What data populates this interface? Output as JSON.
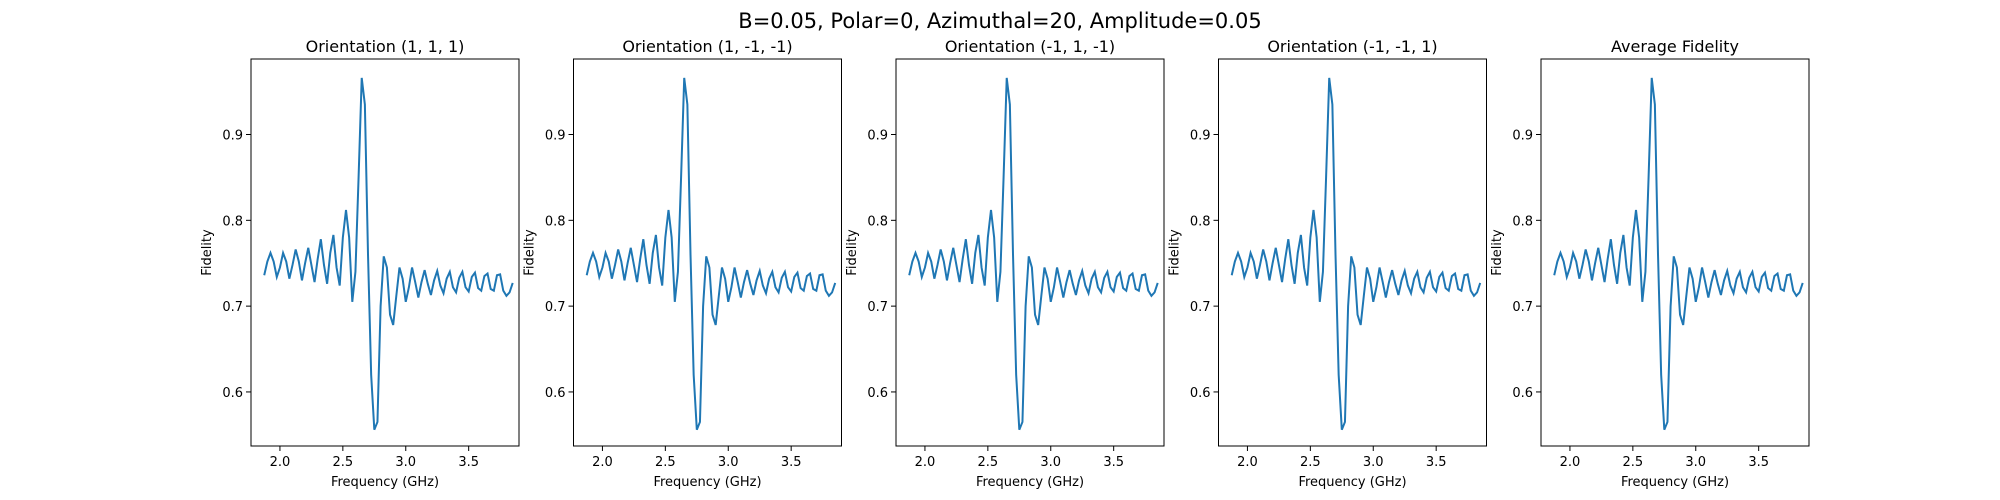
{
  "suptitle": "B=0.05, Polar=0, Azimuthal=20, Amplitude=0.05",
  "chart_data": [
    {
      "type": "line",
      "title": "Orientation (1, 1, 1)",
      "xlabel": "Frequency (GHz)",
      "ylabel": "Fidelity",
      "color": "#1f77b4",
      "x": [
        1.875,
        1.9,
        1.925,
        1.95,
        1.975,
        2.0,
        2.025,
        2.05,
        2.075,
        2.1,
        2.125,
        2.15,
        2.175,
        2.2,
        2.225,
        2.25,
        2.275,
        2.3,
        2.325,
        2.35,
        2.375,
        2.4,
        2.425,
        2.45,
        2.475,
        2.5,
        2.525,
        2.55,
        2.575,
        2.6,
        2.625,
        2.65,
        2.675,
        2.7,
        2.725,
        2.75,
        2.775,
        2.8,
        2.825,
        2.85,
        2.875,
        2.9,
        2.925,
        2.95,
        2.975,
        3.0,
        3.025,
        3.05,
        3.075,
        3.1,
        3.125,
        3.15,
        3.175,
        3.2,
        3.225,
        3.25,
        3.275,
        3.3,
        3.325,
        3.35,
        3.375,
        3.4,
        3.425,
        3.45,
        3.475,
        3.5,
        3.525,
        3.55,
        3.575,
        3.6,
        3.625,
        3.65,
        3.675,
        3.7,
        3.725,
        3.75,
        3.775,
        3.8,
        3.825,
        3.85
      ],
      "values": [
        0.736,
        0.752,
        0.762,
        0.752,
        0.734,
        0.745,
        0.762,
        0.752,
        0.732,
        0.748,
        0.766,
        0.752,
        0.73,
        0.75,
        0.768,
        0.748,
        0.728,
        0.755,
        0.778,
        0.748,
        0.726,
        0.762,
        0.783,
        0.745,
        0.724,
        0.78,
        0.812,
        0.78,
        0.705,
        0.74,
        0.85,
        0.966,
        0.935,
        0.76,
        0.62,
        0.556,
        0.565,
        0.7,
        0.758,
        0.745,
        0.69,
        0.678,
        0.712,
        0.745,
        0.732,
        0.705,
        0.722,
        0.745,
        0.728,
        0.71,
        0.728,
        0.742,
        0.726,
        0.713,
        0.73,
        0.741,
        0.724,
        0.715,
        0.732,
        0.74,
        0.722,
        0.716,
        0.733,
        0.74,
        0.722,
        0.717,
        0.734,
        0.739,
        0.721,
        0.718,
        0.735,
        0.738,
        0.72,
        0.718,
        0.736,
        0.737,
        0.718,
        0.712,
        0.716,
        0.727
      ],
      "xlim": [
        1.77,
        3.9
      ],
      "ylim": [
        0.537,
        0.988
      ],
      "xticks": [
        {
          "value": 2,
          "label": "2.0"
        },
        2.5,
        {
          "value": 3,
          "label": "3.0"
        },
        3.5
      ],
      "yticks": [
        0.6,
        0.7,
        0.8,
        0.9
      ]
    },
    {
      "type": "line",
      "title": "Orientation (1, -1, -1)",
      "xlabel": "Frequency (GHz)",
      "ylabel": "Fidelity",
      "color": "#1f77b4",
      "x": [
        1.875,
        1.9,
        1.925,
        1.95,
        1.975,
        2.0,
        2.025,
        2.05,
        2.075,
        2.1,
        2.125,
        2.15,
        2.175,
        2.2,
        2.225,
        2.25,
        2.275,
        2.3,
        2.325,
        2.35,
        2.375,
        2.4,
        2.425,
        2.45,
        2.475,
        2.5,
        2.525,
        2.55,
        2.575,
        2.6,
        2.625,
        2.65,
        2.675,
        2.7,
        2.725,
        2.75,
        2.775,
        2.8,
        2.825,
        2.85,
        2.875,
        2.9,
        2.925,
        2.95,
        2.975,
        3.0,
        3.025,
        3.05,
        3.075,
        3.1,
        3.125,
        3.15,
        3.175,
        3.2,
        3.225,
        3.25,
        3.275,
        3.3,
        3.325,
        3.35,
        3.375,
        3.4,
        3.425,
        3.45,
        3.475,
        3.5,
        3.525,
        3.55,
        3.575,
        3.6,
        3.625,
        3.65,
        3.675,
        3.7,
        3.725,
        3.75,
        3.775,
        3.8,
        3.825,
        3.85
      ],
      "values": [
        0.736,
        0.752,
        0.762,
        0.752,
        0.734,
        0.745,
        0.762,
        0.752,
        0.732,
        0.748,
        0.766,
        0.752,
        0.73,
        0.75,
        0.768,
        0.748,
        0.728,
        0.755,
        0.778,
        0.748,
        0.726,
        0.762,
        0.783,
        0.745,
        0.724,
        0.78,
        0.812,
        0.78,
        0.705,
        0.74,
        0.85,
        0.966,
        0.935,
        0.76,
        0.62,
        0.556,
        0.565,
        0.7,
        0.758,
        0.745,
        0.69,
        0.678,
        0.712,
        0.745,
        0.732,
        0.705,
        0.722,
        0.745,
        0.728,
        0.71,
        0.728,
        0.742,
        0.726,
        0.713,
        0.73,
        0.741,
        0.724,
        0.715,
        0.732,
        0.74,
        0.722,
        0.716,
        0.733,
        0.74,
        0.722,
        0.717,
        0.734,
        0.739,
        0.721,
        0.718,
        0.735,
        0.738,
        0.72,
        0.718,
        0.736,
        0.737,
        0.718,
        0.712,
        0.716,
        0.727
      ],
      "xlim": [
        1.77,
        3.9
      ],
      "ylim": [
        0.537,
        0.988
      ],
      "xticks": [
        {
          "value": 2,
          "label": "2.0"
        },
        2.5,
        {
          "value": 3,
          "label": "3.0"
        },
        3.5
      ],
      "yticks": [
        0.6,
        0.7,
        0.8,
        0.9
      ]
    },
    {
      "type": "line",
      "title": "Orientation (-1, 1, -1)",
      "xlabel": "Frequency (GHz)",
      "ylabel": "Fidelity",
      "color": "#1f77b4",
      "x": [
        1.875,
        1.9,
        1.925,
        1.95,
        1.975,
        2.0,
        2.025,
        2.05,
        2.075,
        2.1,
        2.125,
        2.15,
        2.175,
        2.2,
        2.225,
        2.25,
        2.275,
        2.3,
        2.325,
        2.35,
        2.375,
        2.4,
        2.425,
        2.45,
        2.475,
        2.5,
        2.525,
        2.55,
        2.575,
        2.6,
        2.625,
        2.65,
        2.675,
        2.7,
        2.725,
        2.75,
        2.775,
        2.8,
        2.825,
        2.85,
        2.875,
        2.9,
        2.925,
        2.95,
        2.975,
        3.0,
        3.025,
        3.05,
        3.075,
        3.1,
        3.125,
        3.15,
        3.175,
        3.2,
        3.225,
        3.25,
        3.275,
        3.3,
        3.325,
        3.35,
        3.375,
        3.4,
        3.425,
        3.45,
        3.475,
        3.5,
        3.525,
        3.55,
        3.575,
        3.6,
        3.625,
        3.65,
        3.675,
        3.7,
        3.725,
        3.75,
        3.775,
        3.8,
        3.825,
        3.85
      ],
      "values": [
        0.736,
        0.752,
        0.762,
        0.752,
        0.734,
        0.745,
        0.762,
        0.752,
        0.732,
        0.748,
        0.766,
        0.752,
        0.73,
        0.75,
        0.768,
        0.748,
        0.728,
        0.755,
        0.778,
        0.748,
        0.726,
        0.762,
        0.783,
        0.745,
        0.724,
        0.78,
        0.812,
        0.78,
        0.705,
        0.74,
        0.85,
        0.966,
        0.935,
        0.76,
        0.62,
        0.556,
        0.565,
        0.7,
        0.758,
        0.745,
        0.69,
        0.678,
        0.712,
        0.745,
        0.732,
        0.705,
        0.722,
        0.745,
        0.728,
        0.71,
        0.728,
        0.742,
        0.726,
        0.713,
        0.73,
        0.741,
        0.724,
        0.715,
        0.732,
        0.74,
        0.722,
        0.716,
        0.733,
        0.74,
        0.722,
        0.717,
        0.734,
        0.739,
        0.721,
        0.718,
        0.735,
        0.738,
        0.72,
        0.718,
        0.736,
        0.737,
        0.718,
        0.712,
        0.716,
        0.727
      ],
      "xlim": [
        1.77,
        3.9
      ],
      "ylim": [
        0.537,
        0.988
      ],
      "xticks": [
        {
          "value": 2,
          "label": "2.0"
        },
        2.5,
        {
          "value": 3,
          "label": "3.0"
        },
        3.5
      ],
      "yticks": [
        0.6,
        0.7,
        0.8,
        0.9
      ]
    },
    {
      "type": "line",
      "title": "Orientation (-1, -1, 1)",
      "xlabel": "Frequency (GHz)",
      "ylabel": "Fidelity",
      "color": "#1f77b4",
      "x": [
        1.875,
        1.9,
        1.925,
        1.95,
        1.975,
        2.0,
        2.025,
        2.05,
        2.075,
        2.1,
        2.125,
        2.15,
        2.175,
        2.2,
        2.225,
        2.25,
        2.275,
        2.3,
        2.325,
        2.35,
        2.375,
        2.4,
        2.425,
        2.45,
        2.475,
        2.5,
        2.525,
        2.55,
        2.575,
        2.6,
        2.625,
        2.65,
        2.675,
        2.7,
        2.725,
        2.75,
        2.775,
        2.8,
        2.825,
        2.85,
        2.875,
        2.9,
        2.925,
        2.95,
        2.975,
        3.0,
        3.025,
        3.05,
        3.075,
        3.1,
        3.125,
        3.15,
        3.175,
        3.2,
        3.225,
        3.25,
        3.275,
        3.3,
        3.325,
        3.35,
        3.375,
        3.4,
        3.425,
        3.45,
        3.475,
        3.5,
        3.525,
        3.55,
        3.575,
        3.6,
        3.625,
        3.65,
        3.675,
        3.7,
        3.725,
        3.75,
        3.775,
        3.8,
        3.825,
        3.85
      ],
      "values": [
        0.736,
        0.752,
        0.762,
        0.752,
        0.734,
        0.745,
        0.762,
        0.752,
        0.732,
        0.748,
        0.766,
        0.752,
        0.73,
        0.75,
        0.768,
        0.748,
        0.728,
        0.755,
        0.778,
        0.748,
        0.726,
        0.762,
        0.783,
        0.745,
        0.724,
        0.78,
        0.812,
        0.78,
        0.705,
        0.74,
        0.85,
        0.966,
        0.935,
        0.76,
        0.62,
        0.556,
        0.565,
        0.7,
        0.758,
        0.745,
        0.69,
        0.678,
        0.712,
        0.745,
        0.732,
        0.705,
        0.722,
        0.745,
        0.728,
        0.71,
        0.728,
        0.742,
        0.726,
        0.713,
        0.73,
        0.741,
        0.724,
        0.715,
        0.732,
        0.74,
        0.722,
        0.716,
        0.733,
        0.74,
        0.722,
        0.717,
        0.734,
        0.739,
        0.721,
        0.718,
        0.735,
        0.738,
        0.72,
        0.718,
        0.736,
        0.737,
        0.718,
        0.712,
        0.716,
        0.727
      ],
      "xlim": [
        1.77,
        3.9
      ],
      "ylim": [
        0.537,
        0.988
      ],
      "xticks": [
        {
          "value": 2,
          "label": "2.0"
        },
        2.5,
        {
          "value": 3,
          "label": "3.0"
        },
        3.5
      ],
      "yticks": [
        0.6,
        0.7,
        0.8,
        0.9
      ]
    },
    {
      "type": "line",
      "title": "Average Fidelity",
      "xlabel": "Frequency (GHz)",
      "ylabel": "Fidelity",
      "color": "#1f77b4",
      "x": [
        1.875,
        1.9,
        1.925,
        1.95,
        1.975,
        2.0,
        2.025,
        2.05,
        2.075,
        2.1,
        2.125,
        2.15,
        2.175,
        2.2,
        2.225,
        2.25,
        2.275,
        2.3,
        2.325,
        2.35,
        2.375,
        2.4,
        2.425,
        2.45,
        2.475,
        2.5,
        2.525,
        2.55,
        2.575,
        2.6,
        2.625,
        2.65,
        2.675,
        2.7,
        2.725,
        2.75,
        2.775,
        2.8,
        2.825,
        2.85,
        2.875,
        2.9,
        2.925,
        2.95,
        2.975,
        3.0,
        3.025,
        3.05,
        3.075,
        3.1,
        3.125,
        3.15,
        3.175,
        3.2,
        3.225,
        3.25,
        3.275,
        3.3,
        3.325,
        3.35,
        3.375,
        3.4,
        3.425,
        3.45,
        3.475,
        3.5,
        3.525,
        3.55,
        3.575,
        3.6,
        3.625,
        3.65,
        3.675,
        3.7,
        3.725,
        3.75,
        3.775,
        3.8,
        3.825,
        3.85
      ],
      "values": [
        0.736,
        0.752,
        0.762,
        0.752,
        0.734,
        0.745,
        0.762,
        0.752,
        0.732,
        0.748,
        0.766,
        0.752,
        0.73,
        0.75,
        0.768,
        0.748,
        0.728,
        0.755,
        0.778,
        0.748,
        0.726,
        0.762,
        0.783,
        0.745,
        0.724,
        0.78,
        0.812,
        0.78,
        0.705,
        0.74,
        0.85,
        0.966,
        0.935,
        0.76,
        0.62,
        0.556,
        0.565,
        0.7,
        0.758,
        0.745,
        0.69,
        0.678,
        0.712,
        0.745,
        0.732,
        0.705,
        0.722,
        0.745,
        0.728,
        0.71,
        0.728,
        0.742,
        0.726,
        0.713,
        0.73,
        0.741,
        0.724,
        0.715,
        0.732,
        0.74,
        0.722,
        0.716,
        0.733,
        0.74,
        0.722,
        0.717,
        0.734,
        0.739,
        0.721,
        0.718,
        0.735,
        0.738,
        0.72,
        0.718,
        0.736,
        0.737,
        0.718,
        0.712,
        0.716,
        0.727
      ],
      "xlim": [
        1.77,
        3.9
      ],
      "ylim": [
        0.537,
        0.988
      ],
      "xticks": [
        {
          "value": 2,
          "label": "2.0"
        },
        2.5,
        {
          "value": 3,
          "label": "3.0"
        },
        3.5
      ],
      "yticks": [
        0.6,
        0.7,
        0.8,
        0.9
      ]
    }
  ]
}
